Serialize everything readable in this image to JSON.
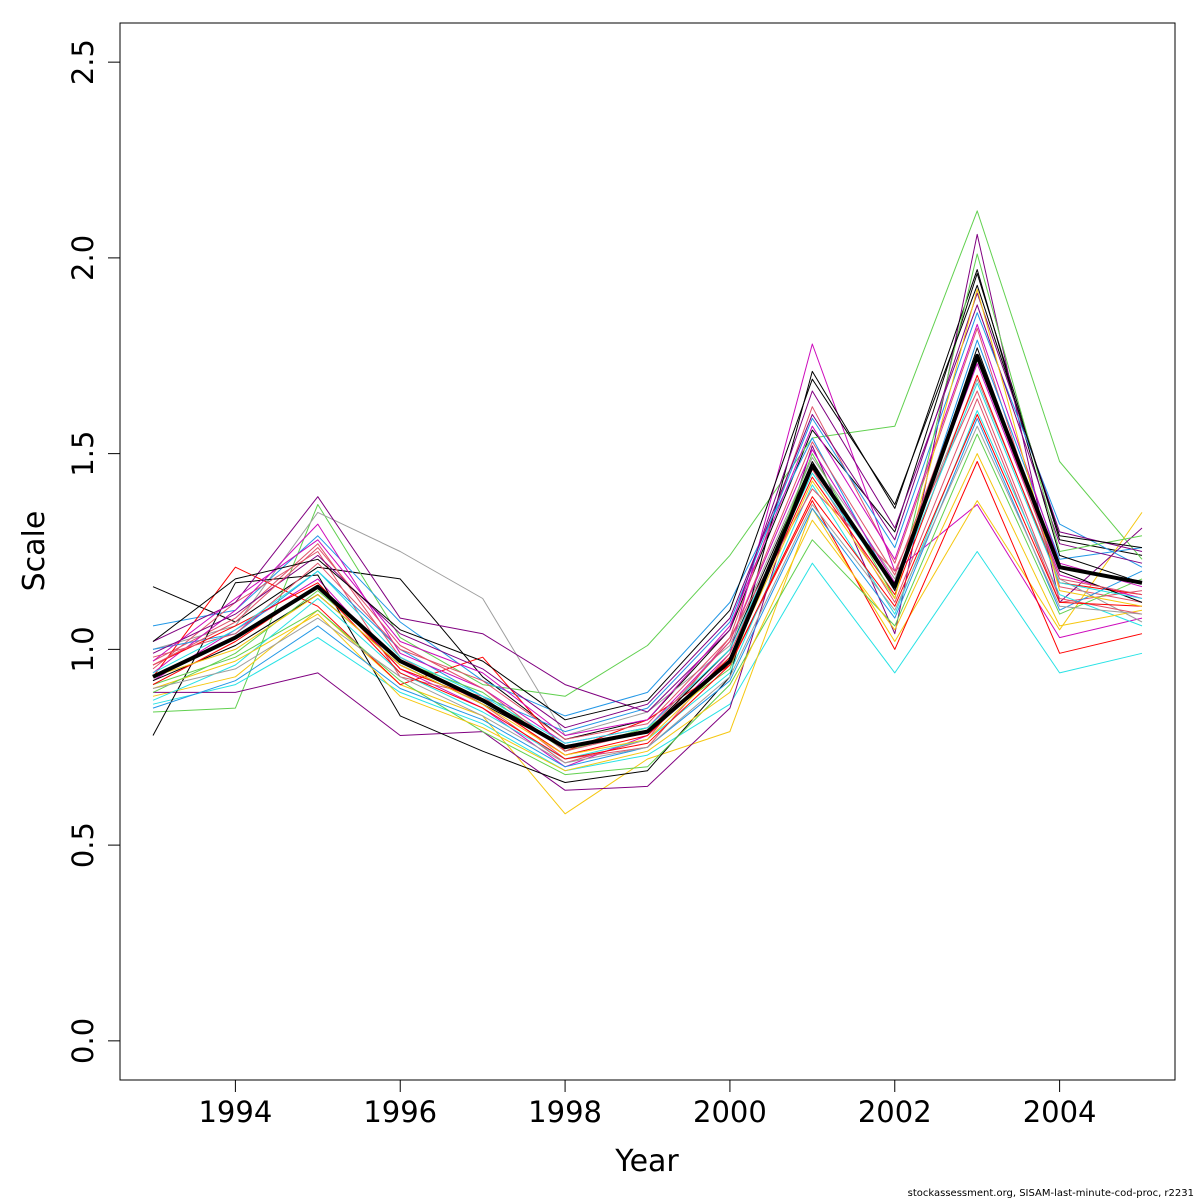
{
  "chart_data": {
    "type": "line",
    "title": "",
    "xlabel": "Year",
    "ylabel": "Scale",
    "xlim": [
      1992.6,
      2005.4
    ],
    "ylim": [
      -0.1,
      2.6
    ],
    "x": [
      1993,
      1994,
      1995,
      1996,
      1997,
      1998,
      1999,
      2000,
      2001,
      2002,
      2003,
      2004,
      2005
    ],
    "x_ticks": [
      1994,
      1996,
      1998,
      2000,
      2002,
      2004
    ],
    "x_tick_labels": [
      "1994",
      "1996",
      "1998",
      "2000",
      "2002",
      "2004"
    ],
    "y_ticks": [
      0.0,
      0.5,
      1.0,
      1.5,
      2.0,
      2.5
    ],
    "y_tick_labels": [
      "0.0",
      "0.5",
      "1.0",
      "1.5",
      "2.0",
      "2.5"
    ],
    "grid": false,
    "legend": "none",
    "palette": [
      "#000000",
      "#DF536B",
      "#61D04F",
      "#2297E6",
      "#28E2E5",
      "#CD0BBC",
      "#F5C710",
      "#9E9E9E",
      "#FF0000",
      "#800080",
      "#A0A0A0",
      "#0000CD"
    ],
    "highlighted_series": {
      "color": "#000000",
      "values": [
        0.93,
        1.03,
        1.16,
        0.97,
        0.87,
        0.75,
        0.79,
        0.97,
        1.47,
        1.16,
        1.75,
        1.21,
        1.17
      ]
    },
    "series": [
      {
        "color": "#000000",
        "values": [
          1.16,
          1.07,
          1.21,
          1.18,
          0.93,
          0.77,
          0.82,
          1.05,
          1.56,
          1.3,
          1.96,
          1.28,
          1.24
        ]
      },
      {
        "color": "#DF536B",
        "values": [
          0.97,
          1.08,
          1.27,
          0.98,
          0.86,
          0.71,
          0.77,
          1.03,
          1.62,
          1.22,
          1.82,
          1.16,
          1.12
        ]
      },
      {
        "color": "#61D04F",
        "values": [
          0.84,
          0.85,
          1.37,
          1.03,
          0.91,
          0.88,
          1.01,
          1.24,
          1.54,
          1.57,
          2.12,
          1.48,
          1.23
        ]
      },
      {
        "color": "#2297E6",
        "values": [
          1.06,
          1.1,
          1.29,
          1.07,
          0.92,
          0.83,
          0.89,
          1.12,
          1.54,
          1.15,
          1.79,
          1.23,
          1.26
        ]
      },
      {
        "color": "#28E2E5",
        "values": [
          0.86,
          0.91,
          1.03,
          0.89,
          0.81,
          0.69,
          0.73,
          0.86,
          1.22,
          0.94,
          1.25,
          0.94,
          0.99
        ]
      },
      {
        "color": "#CD0BBC",
        "values": [
          0.92,
          1.05,
          1.18,
          0.95,
          0.85,
          0.7,
          0.78,
          0.99,
          1.78,
          1.2,
          1.37,
          1.03,
          1.08
        ]
      },
      {
        "color": "#F5C710",
        "values": [
          0.88,
          0.93,
          1.1,
          0.91,
          0.83,
          0.58,
          0.72,
          0.79,
          1.36,
          1.02,
          1.38,
          1.05,
          1.35
        ]
      },
      {
        "color": "#9E9E9E",
        "values": [
          1.0,
          1.06,
          1.35,
          1.25,
          1.13,
          0.78,
          0.84,
          1.01,
          1.49,
          1.18,
          1.69,
          1.18,
          1.07
        ]
      },
      {
        "color": "#FF0000",
        "values": [
          0.93,
          1.21,
          1.11,
          0.91,
          0.98,
          0.74,
          0.82,
          0.96,
          1.38,
          1.0,
          1.48,
          0.99,
          1.04
        ]
      },
      {
        "color": "#800080",
        "values": [
          0.89,
          0.89,
          0.94,
          0.78,
          0.79,
          0.64,
          0.65,
          0.85,
          1.52,
          1.04,
          2.06,
          1.12,
          1.31
        ]
      },
      {
        "color": "#000000",
        "values": [
          0.78,
          1.17,
          1.19,
          0.83,
          0.74,
          0.66,
          0.69,
          0.93,
          1.71,
          1.36,
          1.97,
          1.24,
          1.17
        ]
      },
      {
        "color": "#DF536B",
        "values": [
          0.95,
          1.12,
          1.25,
          0.93,
          0.88,
          0.72,
          0.75,
          0.99,
          1.46,
          1.12,
          1.64,
          1.12,
          1.15
        ]
      },
      {
        "color": "#61D04F",
        "values": [
          0.91,
          0.98,
          1.1,
          0.92,
          0.79,
          0.68,
          0.7,
          0.91,
          1.28,
          1.06,
          1.55,
          1.09,
          1.18
        ]
      },
      {
        "color": "#2297E6",
        "values": [
          1.0,
          1.04,
          1.2,
          1.0,
          0.88,
          0.79,
          0.85,
          1.07,
          1.59,
          1.26,
          1.86,
          1.32,
          1.21
        ]
      },
      {
        "color": "#28E2E5",
        "values": [
          0.87,
          0.96,
          1.13,
          0.94,
          0.84,
          0.72,
          0.77,
          0.94,
          1.42,
          1.09,
          1.61,
          1.14,
          1.06
        ]
      },
      {
        "color": "#CD0BBC",
        "values": [
          0.94,
          1.1,
          1.32,
          0.99,
          0.9,
          0.76,
          0.8,
          1.02,
          1.51,
          1.17,
          1.73,
          1.19,
          1.13
        ]
      },
      {
        "color": "#F5C710",
        "values": [
          0.9,
          0.97,
          1.09,
          0.88,
          0.8,
          0.69,
          0.74,
          0.89,
          1.33,
          1.05,
          1.5,
          1.06,
          1.1
        ]
      },
      {
        "color": "#FF0000",
        "values": [
          0.96,
          1.06,
          1.17,
          0.95,
          0.87,
          0.73,
          0.78,
          0.98,
          1.44,
          1.14,
          1.7,
          1.17,
          1.14
        ]
      },
      {
        "color": "#800080",
        "values": [
          1.02,
          1.12,
          1.39,
          1.08,
          1.04,
          0.91,
          0.84,
          1.05,
          1.66,
          1.31,
          1.88,
          1.27,
          1.22
        ]
      },
      {
        "color": "#000000",
        "values": [
          0.92,
          1.01,
          1.14,
          0.96,
          0.86,
          0.75,
          0.79,
          1.0,
          1.48,
          1.15,
          1.77,
          1.2,
          1.12
        ]
      },
      {
        "color": "#61D04F",
        "values": [
          0.89,
          0.99,
          1.15,
          0.97,
          0.89,
          0.74,
          0.8,
          0.95,
          1.5,
          1.13,
          2.01,
          1.25,
          1.29
        ]
      },
      {
        "color": "#DF536B",
        "values": [
          0.98,
          1.04,
          1.22,
          1.0,
          0.92,
          0.77,
          0.81,
          1.03,
          1.41,
          1.2,
          1.66,
          1.13,
          1.09
        ]
      },
      {
        "color": "#2297E6",
        "values": [
          0.85,
          0.92,
          1.06,
          0.9,
          0.82,
          0.7,
          0.75,
          0.92,
          1.36,
          1.08,
          1.59,
          1.1,
          1.2
        ]
      },
      {
        "color": "#CD0BBC",
        "values": [
          0.97,
          1.13,
          1.28,
          1.02,
          0.94,
          0.78,
          0.82,
          1.06,
          1.57,
          1.23,
          1.83,
          1.22,
          1.16
        ]
      },
      {
        "color": "#FF0000",
        "values": [
          0.91,
          1.02,
          1.16,
          0.94,
          0.85,
          0.72,
          0.76,
          0.96,
          1.39,
          1.11,
          1.6,
          1.12,
          1.11
        ]
      },
      {
        "color": "#800080",
        "values": [
          0.99,
          1.09,
          1.24,
          1.04,
          0.95,
          0.8,
          0.86,
          1.08,
          1.6,
          1.28,
          1.91,
          1.3,
          1.25
        ]
      },
      {
        "color": "#28E2E5",
        "values": [
          0.94,
          1.05,
          1.2,
          0.98,
          0.88,
          0.76,
          0.8,
          1.0,
          1.45,
          1.16,
          1.68,
          1.17,
          1.13
        ]
      },
      {
        "color": "#F5C710",
        "values": [
          0.93,
          1.0,
          1.14,
          0.96,
          0.86,
          0.73,
          0.77,
          0.97,
          1.43,
          1.13,
          1.92,
          1.15,
          1.11
        ]
      },
      {
        "color": "#9E9E9E",
        "values": [
          0.9,
          0.95,
          1.08,
          0.93,
          0.83,
          0.71,
          0.75,
          0.93,
          1.37,
          1.1,
          1.57,
          1.11,
          1.09
        ]
      },
      {
        "color": "#DF536B",
        "values": [
          0.96,
          1.07,
          1.26,
          1.01,
          0.9,
          0.74,
          0.79,
          1.02,
          1.53,
          1.19,
          1.75,
          1.18,
          1.14
        ]
      },
      {
        "color": "#000000",
        "values": [
          1.02,
          1.18,
          1.23,
          1.05,
          0.97,
          0.82,
          0.87,
          1.1,
          1.69,
          1.37,
          1.93,
          1.29,
          1.26
        ]
      }
    ]
  },
  "footer": {
    "credit": "stockassessment.org, SISAM-last-minute-cod-proc, r2231"
  }
}
